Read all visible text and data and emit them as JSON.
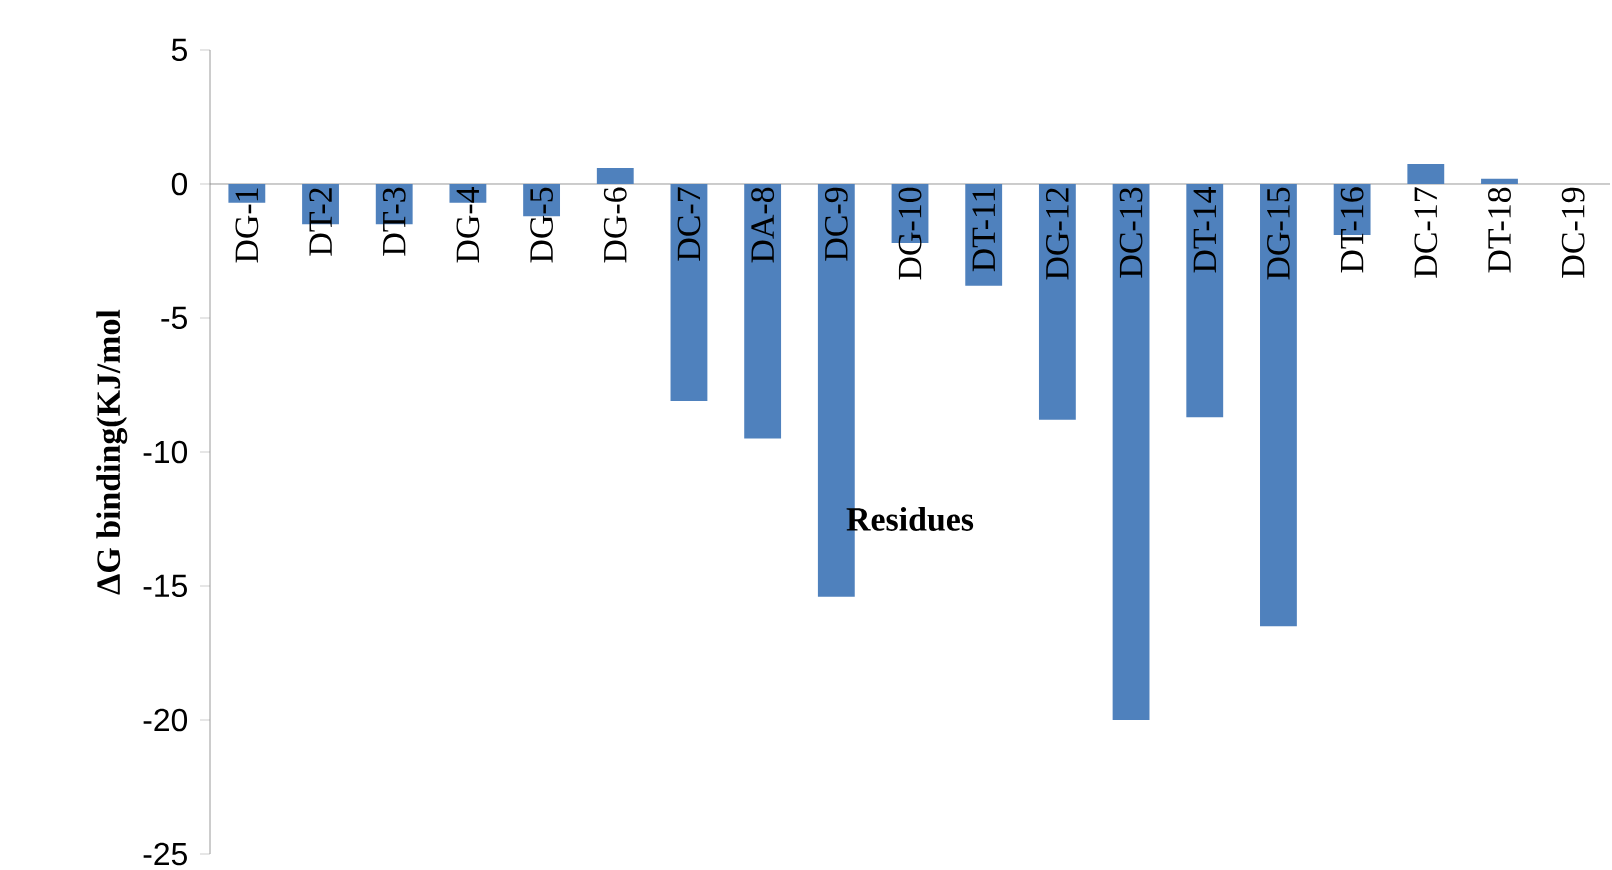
{
  "chart_data": {
    "type": "bar",
    "xlabel": "Residues",
    "ylabel": "ΔG binding(KJ/mol",
    "categories": [
      "DG-1",
      "DT-2",
      "DT-3",
      "DG-4",
      "DG-5",
      "DG-6",
      "DC-7",
      "DA-8",
      "DC-9",
      "DG-10",
      "DT-11",
      "DG-12",
      "DC-13",
      "DT-14",
      "DG-15",
      "DT-16",
      "DC-17",
      "DT-18",
      "DC-19"
    ],
    "values": [
      -0.7,
      -1.5,
      -1.5,
      -0.7,
      -1.2,
      0.6,
      -8.1,
      -9.5,
      -15.4,
      -2.2,
      -3.8,
      -8.8,
      -20,
      -8.7,
      -16.5,
      -1.9,
      0.75,
      0.2,
      0
    ],
    "color": "#4f81bd",
    "ylim": [
      -25,
      5
    ],
    "yticks": [
      -25,
      -20,
      -15,
      -10,
      -5,
      0,
      5
    ]
  }
}
